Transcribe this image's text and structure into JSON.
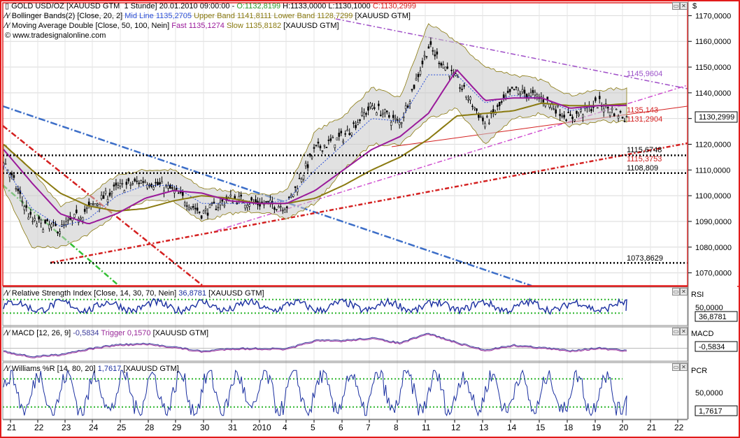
{
  "colors": {
    "frame": "#e21b1b",
    "candle": "#000000",
    "band_fill": "#c8c8c8",
    "mid_line": "#2b4fd8",
    "fast": "#9a1a9a",
    "slow": "#8a7a10",
    "rsi": "#1a2fa0",
    "macd": "#3a3a9a",
    "trigger": "#9a2a9a",
    "grid": "#d9d9d9",
    "level": "#000000",
    "green": "#2ab52a",
    "trend_blue": "#3c6ec8",
    "trend_red": "#d42020",
    "trend_magenta": "#d050d0",
    "trend_purple": "#a050c8",
    "trend_green": "#33c033"
  },
  "main_header": {
    "symbol": "GOLD USD/OZ [XAUUSD GTM  1 Stunde] 20.01.2010 09:00:00 - ",
    "open": "O:1132,8199",
    "hl": " H:1133,0000 L:1130,1000 ",
    "close": "C:1130,2999",
    "bollinger_prefix": "Bollinger Bands(2) [Close, 20, 2] ",
    "mid_line": "Mid Line 1135,2705",
    "upper_band": " Upper Band 1141,8111",
    "lower_band": " Lower Band 1128,7299",
    "bollinger_suffix": " [XAUUSD GTM]",
    "ma_prefix": "Moving Average Double [Close, 50, 100, Nein] ",
    "fast": "Fast 1135,1274",
    "slow": " Slow 1135,8182",
    "ma_suffix": " [XAUUSD GTM]",
    "copyright": "© www.tradesignalonline.com"
  },
  "rsi_header": {
    "prefix": "Relative Strength Index [Close, 14, 30, 70, Nein] ",
    "value": "36,8781",
    "suffix": " [XAUUSD GTM]"
  },
  "macd_header": {
    "prefix": "MACD [12, 26, 9] ",
    "value": "-0,5834",
    "trigger": " Trigger 0,1570",
    "suffix": " [XAUUSD GTM]"
  },
  "williams_header": {
    "prefix": "Williams %R [14, 80, 20] ",
    "value": "1,7617",
    "suffix": " [XAUUSD GTM]"
  },
  "axis": {
    "currency": "$",
    "price_ticks": [
      "1170,0000",
      "1160,0000",
      "1150,0000",
      "1140,0000",
      "1130,0000",
      "1120,0000",
      "1110,0000",
      "1100,0000",
      "1090,0000",
      "1080,0000",
      "1070,0000"
    ],
    "price_values": [
      1170,
      1160,
      1150,
      1140,
      1130,
      1120,
      1110,
      1100,
      1090,
      1080,
      1070
    ],
    "last_price": "1130,2999",
    "rsi_label": "RSI",
    "rsi_tick": "50,0000",
    "rsi_value": "36,8781",
    "macd_label": "MACD",
    "macd_value": "-0,5834",
    "pcr_label": "PCR",
    "pcr_tick": "50,0000",
    "pcr_value": "1,7617",
    "x_labels": [
      "21",
      "22",
      "23",
      "24",
      "25",
      "28",
      "29",
      "30",
      "31",
      "2010",
      "4",
      "5",
      "6",
      "7",
      "8",
      "11",
      "12",
      "13",
      "14",
      "15",
      "18",
      "19",
      "20",
      "21",
      "22"
    ]
  },
  "annotations": {
    "a1": "1145,9604",
    "a2": "1135,143",
    "a3": "1131,2904",
    "a4": "1115,6748",
    "a5": "1115,3753",
    "a6": "1108,809",
    "a7": "1073,8629"
  },
  "chart_data": [
    {
      "type": "line",
      "title": "GOLD USD/OZ [XAUUSD GTM  1 Stunde]",
      "x": [
        "21",
        "22",
        "23",
        "24",
        "25",
        "28",
        "29",
        "30",
        "31",
        "2010",
        "4",
        "5",
        "6",
        "7",
        "8",
        "11",
        "12",
        "13",
        "14",
        "15",
        "18",
        "19",
        "20"
      ],
      "series": [
        {
          "name": "Close",
          "values": [
            1114,
            1090,
            1087,
            1095,
            1103,
            1106,
            1102,
            1093,
            1099,
            1097,
            1096,
            1118,
            1123,
            1135,
            1128,
            1158,
            1145,
            1128,
            1141,
            1138,
            1130,
            1136,
            1130.3
          ]
        },
        {
          "name": "Mid Line",
          "values": [
            1112,
            1095,
            1088,
            1091,
            1100,
            1104,
            1104,
            1097,
            1097,
            1097,
            1098,
            1110,
            1120,
            1130,
            1129,
            1147,
            1147,
            1136,
            1139,
            1138,
            1133,
            1135,
            1135.3
          ]
        },
        {
          "name": "Upper Band",
          "values": [
            1120,
            1110,
            1096,
            1100,
            1108,
            1110,
            1110,
            1103,
            1102,
            1100,
            1102,
            1125,
            1131,
            1142,
            1138,
            1167,
            1160,
            1150,
            1147,
            1145,
            1139,
            1141,
            1141.8
          ]
        },
        {
          "name": "Lower Band",
          "values": [
            1103,
            1080,
            1080,
            1085,
            1093,
            1098,
            1098,
            1090,
            1093,
            1094,
            1091,
            1097,
            1110,
            1120,
            1120,
            1130,
            1134,
            1120,
            1130,
            1132,
            1127,
            1129,
            1128.7
          ]
        },
        {
          "name": "Fast",
          "values": [
            1118,
            1105,
            1093,
            1089,
            1093,
            1099,
            1102,
            1101,
            1098,
            1097,
            1097,
            1102,
            1110,
            1118,
            1123,
            1132,
            1149,
            1137,
            1138,
            1138,
            1134,
            1135,
            1135.1
          ]
        },
        {
          "name": "Slow",
          "values": [
            1120,
            1110,
            1101,
            1096,
            1094,
            1095,
            1098,
            1100,
            1099,
            1097,
            1097,
            1099,
            1104,
            1110,
            1115,
            1122,
            1131,
            1132,
            1133,
            1136,
            1135,
            1135,
            1135.8
          ]
        }
      ],
      "levels": [
        1115.6748,
        1115.3753,
        1108.809,
        1073.8629
      ],
      "ylim": [
        1065,
        1175
      ]
    },
    {
      "type": "line",
      "title": "Relative Strength Index [Close, 14, 30, 70, Nein]",
      "levels": [
        30,
        70
      ],
      "last_value": 36.8781,
      "ylim": [
        0,
        100
      ]
    },
    {
      "type": "line",
      "title": "MACD [12, 26, 9]",
      "series": [
        {
          "name": "MACD",
          "last_value": -0.5834
        },
        {
          "name": "Trigger",
          "last_value": 0.157
        }
      ]
    },
    {
      "type": "line",
      "title": "Williams %R [14, 80, 20]",
      "levels": [
        20,
        80
      ],
      "last_value": 1.7617,
      "ylim": [
        0,
        100
      ]
    }
  ]
}
